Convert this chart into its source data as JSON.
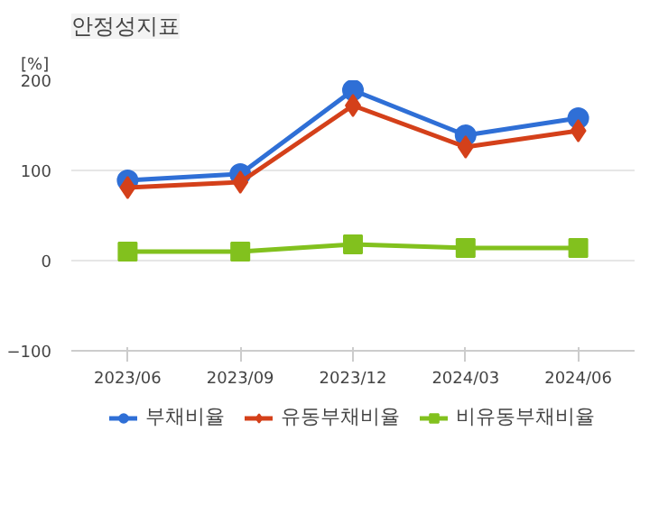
{
  "chart_data": {
    "type": "line",
    "title": "안정성지표",
    "ylabel": "[%]",
    "categories": [
      "2023/06",
      "2023/09",
      "2023/12",
      "2024/03",
      "2024/06"
    ],
    "ylim": [
      -100,
      200
    ],
    "yticks": [
      -100,
      0,
      100,
      200
    ],
    "grid": "y",
    "legend": "bottom",
    "series": [
      {
        "name": "부채비율",
        "color": "#2f6fd6",
        "marker": "circle",
        "values": [
          89,
          96,
          189,
          139,
          158
        ]
      },
      {
        "name": "유동부채비율",
        "color": "#d4401a",
        "marker": "diamond",
        "values": [
          81,
          87,
          172,
          126,
          144
        ]
      },
      {
        "name": "비유동부채비율",
        "color": "#82c11e",
        "marker": "square",
        "values": [
          10,
          10,
          18,
          14,
          14
        ]
      }
    ]
  }
}
